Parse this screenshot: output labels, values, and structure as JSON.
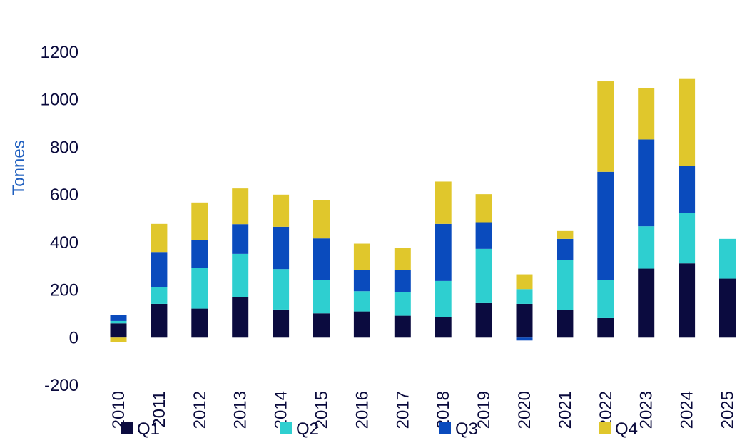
{
  "chart_data": {
    "type": "bar",
    "stacked": true,
    "title": "",
    "xlabel": "",
    "ylabel": "Tonnes",
    "ylim": [
      -200,
      1200
    ],
    "yticks": [
      "-200",
      "0",
      "200",
      "400",
      "600",
      "800",
      "1000",
      "1200"
    ],
    "categories": [
      "2010",
      "2011",
      "2012",
      "2013",
      "2014",
      "2015",
      "2016",
      "2017",
      "2018",
      "2019",
      "2020",
      "2021",
      "2022",
      "2023",
      "2024",
      "2025"
    ],
    "series": [
      {
        "name": "Q1",
        "color": "#0b0b3f",
        "values": [
          60,
          142,
          122,
          170,
          118,
          102,
          110,
          92,
          85,
          145,
          142,
          115,
          82,
          290,
          312,
          248
        ]
      },
      {
        "name": "Q2",
        "color": "#2ecfd0",
        "values": [
          10,
          70,
          170,
          182,
          170,
          140,
          85,
          98,
          153,
          228,
          62,
          210,
          160,
          178,
          212,
          167
        ]
      },
      {
        "name": "Q3",
        "color": "#0a4bbd",
        "values": [
          25,
          148,
          118,
          125,
          178,
          175,
          90,
          95,
          240,
          112,
          -12,
          90,
          455,
          365,
          198,
          0
        ]
      },
      {
        "name": "Q4",
        "color": "#e0c72c",
        "values": [
          -18,
          118,
          158,
          150,
          135,
          160,
          110,
          93,
          178,
          118,
          62,
          33,
          380,
          215,
          365,
          0
        ]
      }
    ],
    "grid": false,
    "legend": "bottom",
    "colors": {
      "ylabel": "#1f5fbf",
      "text": "#0a0a3c"
    }
  }
}
